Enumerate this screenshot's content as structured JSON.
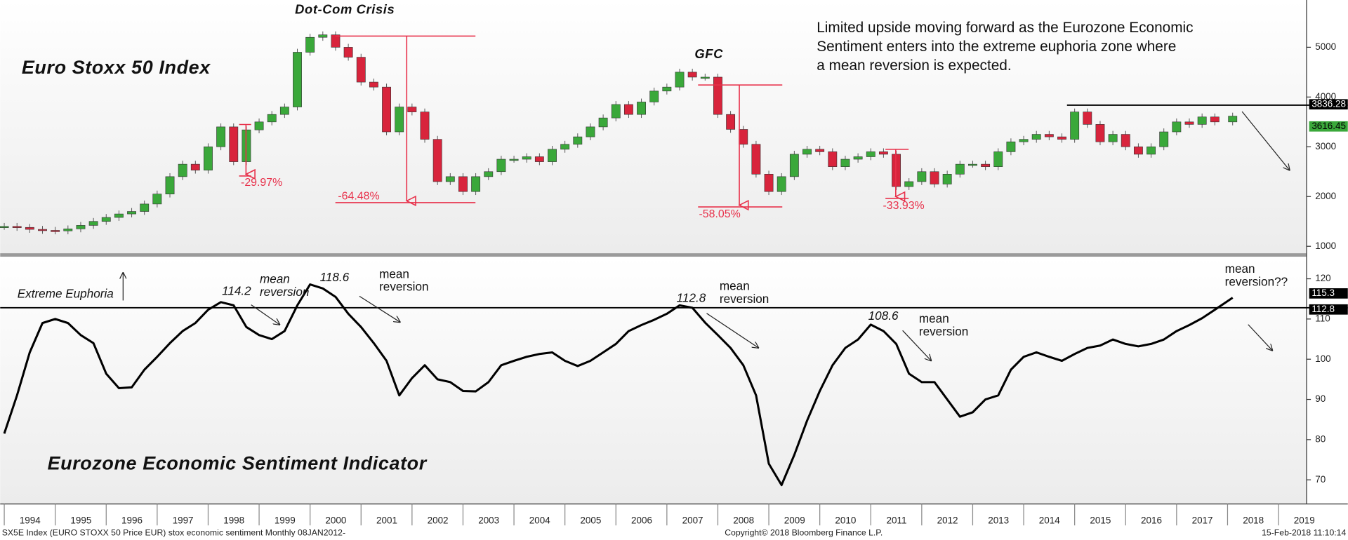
{
  "chart_data": [
    {
      "type": "candlestick",
      "title": "Euro Stoxx 50 Index",
      "x": [
        1994,
        1994.25,
        1994.5,
        1994.75,
        1995,
        1995.25,
        1995.5,
        1995.75,
        1996,
        1996.25,
        1996.5,
        1996.75,
        1997,
        1997.25,
        1997.5,
        1997.75,
        1998,
        1998.25,
        1998.5,
        1998.75,
        1999,
        1999.25,
        1999.5,
        1999.75,
        2000,
        2000.25,
        2000.5,
        2000.75,
        2001,
        2001.25,
        2001.5,
        2001.75,
        2002,
        2002.25,
        2002.5,
        2002.75,
        2003,
        2003.25,
        2003.5,
        2003.75,
        2004,
        2004.25,
        2004.5,
        2004.75,
        2005,
        2005.25,
        2005.5,
        2005.75,
        2006,
        2006.25,
        2006.5,
        2006.75,
        2007,
        2007.25,
        2007.5,
        2007.75,
        2008,
        2008.25,
        2008.5,
        2008.75,
        2009,
        2009.25,
        2009.5,
        2009.75,
        2010,
        2010.25,
        2010.5,
        2010.75,
        2011,
        2011.25,
        2011.5,
        2011.75,
        2012,
        2012.25,
        2012.5,
        2012.75,
        2013,
        2013.25,
        2013.5,
        2013.75,
        2014,
        2014.25,
        2014.5,
        2014.75,
        2015,
        2015.25,
        2015.5,
        2015.75,
        2016,
        2016.25,
        2016.5,
        2016.75,
        2017,
        2017.25,
        2017.5,
        2017.75,
        2018.1
      ],
      "values": [
        1400,
        1380,
        1340,
        1320,
        1310,
        1350,
        1420,
        1500,
        1580,
        1650,
        1700,
        1850,
        2050,
        2400,
        2650,
        2530,
        3000,
        3400,
        2700,
        3340,
        3500,
        3650,
        3800,
        4900,
        5200,
        5250,
        5000,
        4800,
        4300,
        4200,
        3300,
        3800,
        3700,
        3150,
        2300,
        2400,
        2100,
        2400,
        2500,
        2750,
        2750,
        2800,
        2700,
        2950,
        3050,
        3200,
        3400,
        3580,
        3850,
        3650,
        3900,
        4120,
        4200,
        4500,
        4400,
        4400,
        3650,
        3350,
        3050,
        2450,
        2100,
        2400,
        2850,
        2950,
        2900,
        2600,
        2750,
        2800,
        2900,
        2850,
        2200,
        2300,
        2500,
        2250,
        2450,
        2650,
        2650,
        2600,
        2900,
        3100,
        3150,
        3250,
        3200,
        3150,
        3700,
        3450,
        3100,
        3250,
        3000,
        2850,
        3000,
        3300,
        3500,
        3450,
        3600,
        3500,
        3616.45
      ],
      "colors": {
        "up": "#3aa83a",
        "down": "#d8243c"
      },
      "xlim": [
        1993.92,
        2019.55
      ],
      "ylim": [
        860,
        5950
      ],
      "yticks": [
        1000,
        2000,
        3000,
        4000,
        5000
      ],
      "reference_line": 3836.28,
      "annotations": [
        "Dot-Com Crisis",
        "GFC"
      ],
      "drawdowns": [
        -29.97,
        -64.48,
        -58.05,
        -33.93
      ],
      "drawdown_labels": [
        "-29.97%",
        "-64.48%",
        "-58.05%",
        "-33.93%"
      ],
      "commentary": [
        "Limited upside moving forward as the Eurozone Economic",
        "Sentiment enters into the extreme euphoria zone where",
        "a mean reversion is expected."
      ]
    },
    {
      "type": "line",
      "title": "Eurozone Economic Sentiment Indicator",
      "x": [
        1994,
        1994.25,
        1994.5,
        1994.75,
        1995,
        1995.25,
        1995.5,
        1995.75,
        1996,
        1996.25,
        1996.5,
        1996.75,
        1997,
        1997.25,
        1997.5,
        1997.75,
        1998,
        1998.25,
        1998.5,
        1998.75,
        1999,
        1999.25,
        1999.5,
        1999.75,
        2000,
        2000.25,
        2000.5,
        2000.75,
        2001,
        2001.25,
        2001.5,
        2001.75,
        2002,
        2002.25,
        2002.5,
        2002.75,
        2003,
        2003.25,
        2003.5,
        2003.75,
        2004,
        2004.25,
        2004.5,
        2004.75,
        2005,
        2005.25,
        2005.5,
        2005.75,
        2006,
        2006.25,
        2006.5,
        2006.75,
        2007,
        2007.25,
        2007.5,
        2007.75,
        2008,
        2008.25,
        2008.5,
        2008.75,
        2009,
        2009.25,
        2009.5,
        2009.75,
        2010,
        2010.25,
        2010.5,
        2010.75,
        2011,
        2011.25,
        2011.5,
        2011.75,
        2012,
        2012.25,
        2012.5,
        2012.75,
        2013,
        2013.25,
        2013.5,
        2013.75,
        2014,
        2014.25,
        2014.5,
        2014.75,
        2015,
        2015.25,
        2015.5,
        2015.75,
        2016,
        2016.25,
        2016.5,
        2016.75,
        2017,
        2017.25,
        2017.5,
        2017.75,
        2018.1
      ],
      "values": [
        81.5,
        91,
        101.7,
        109,
        110,
        109,
        106,
        104,
        96.4,
        92.8,
        93,
        97.4,
        100.6,
        104,
        107,
        109,
        112.3,
        114.2,
        113.4,
        108,
        106,
        105,
        107,
        113.4,
        118.6,
        117.6,
        115.5,
        111.3,
        108,
        104,
        99.6,
        91,
        95.3,
        98.5,
        95,
        94.3,
        92.1,
        92,
        94.3,
        98.5,
        99.6,
        100.6,
        101.3,
        101.7,
        99.6,
        98.3,
        99.6,
        101.7,
        103.8,
        107,
        108.5,
        109.8,
        111.3,
        113.4,
        112.8,
        109.1,
        106,
        102.8,
        98.5,
        91,
        74,
        68.7,
        76.2,
        84.7,
        92.1,
        98.5,
        102.8,
        104.9,
        108.6,
        107,
        103.8,
        96.4,
        94.3,
        94.3,
        90,
        85.7,
        86.8,
        90,
        91,
        97.4,
        100.6,
        101.7,
        100.6,
        99.6,
        101.3,
        102.8,
        103.4,
        104.9,
        103.8,
        103.2,
        103.8,
        104.9,
        107,
        108.5,
        110.2,
        112.3,
        115.3
      ],
      "color": "#000000",
      "xlim": [
        1993.92,
        2019.55
      ],
      "ylim": [
        64,
        125.5
      ],
      "yticks": [
        70,
        80,
        90,
        100,
        110,
        120
      ],
      "xticks": [
        1994,
        1995,
        1996,
        1997,
        1998,
        1999,
        2000,
        2001,
        2002,
        2003,
        2004,
        2005,
        2006,
        2007,
        2008,
        2009,
        2010,
        2011,
        2012,
        2013,
        2014,
        2015,
        2016,
        2017,
        2018,
        2019
      ],
      "reference_line": 112.8,
      "zone_label": "Extreme Euphoria",
      "peak_labels": [
        114.2,
        118.6,
        112.8,
        108.6
      ],
      "notes": [
        [
          "mean",
          "reversion"
        ],
        [
          "mean",
          "reversion"
        ],
        [
          "mean",
          "reversion"
        ],
        [
          "mean",
          "reversion"
        ],
        [
          "mean",
          "reversion??"
        ]
      ]
    }
  ],
  "footer": [
    "SX5E Index (EURO STOXX 50 Price EUR) stox economic sentiment  Monthly 08JAN2012-",
    "Copyright© 2018 Bloomberg Finance L.P.",
    "15-Feb-2018 11:10:14"
  ]
}
